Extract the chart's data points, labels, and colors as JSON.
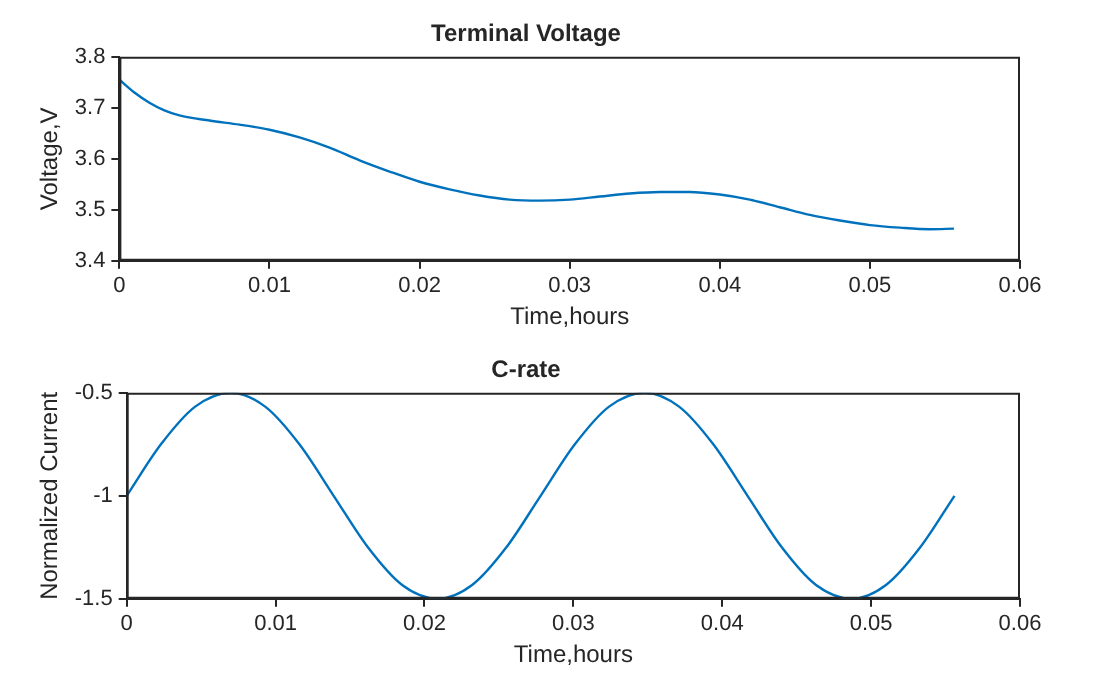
{
  "chart_data": [
    {
      "type": "line",
      "title": "Terminal Voltage",
      "xlabel": "Time,hours",
      "ylabel": "Voltage,V",
      "xlim": [
        0,
        0.06
      ],
      "xticks": [
        0,
        0.01,
        0.02,
        0.03,
        0.04,
        0.05,
        0.06
      ],
      "ylim": [
        3.4,
        3.8
      ],
      "yticks": [
        3.4,
        3.5,
        3.6,
        3.7,
        3.8
      ],
      "grid": false,
      "legend": false,
      "marker": "none",
      "line_style": "solid",
      "x": [
        0,
        0.001,
        0.002,
        0.003,
        0.004,
        0.006,
        0.008,
        0.01,
        0.012,
        0.014,
        0.016,
        0.018,
        0.02,
        0.022,
        0.024,
        0.026,
        0.028,
        0.03,
        0.032,
        0.034,
        0.036,
        0.038,
        0.04,
        0.042,
        0.044,
        0.046,
        0.048,
        0.05,
        0.052,
        0.054,
        0.0556
      ],
      "series": [
        {
          "color": "#0072bd",
          "values": [
            3.755,
            3.73,
            3.71,
            3.695,
            3.685,
            3.675,
            3.667,
            3.657,
            3.642,
            3.622,
            3.597,
            3.575,
            3.555,
            3.54,
            3.528,
            3.52,
            3.518,
            3.52,
            3.526,
            3.532,
            3.535,
            3.535,
            3.53,
            3.52,
            3.505,
            3.49,
            3.479,
            3.47,
            3.465,
            3.462,
            3.463
          ]
        }
      ]
    },
    {
      "type": "line",
      "title": "C-rate",
      "xlabel": "Time,hours",
      "ylabel": "Normalized Current",
      "xlim": [
        0,
        0.06
      ],
      "xticks": [
        0,
        0.01,
        0.02,
        0.03,
        0.04,
        0.05,
        0.06
      ],
      "ylim": [
        -1.5,
        -0.5
      ],
      "yticks": [
        -1.5,
        -1,
        -0.5
      ],
      "grid": false,
      "legend": false,
      "marker": "none",
      "line_style": "solid",
      "x": [
        0,
        0.0023,
        0.0046,
        0.007,
        0.0093,
        0.0116,
        0.0139,
        0.0162,
        0.0185,
        0.0209,
        0.0232,
        0.0255,
        0.0278,
        0.0301,
        0.0324,
        0.0348,
        0.0371,
        0.0394,
        0.0417,
        0.044,
        0.0463,
        0.0487,
        0.051,
        0.0533,
        0.0556
      ],
      "series": [
        {
          "color": "#0072bd",
          "values": [
            -1,
            -0.75,
            -0.567,
            -0.5,
            -0.567,
            -0.75,
            -1,
            -1.25,
            -1.433,
            -1.5,
            -1.433,
            -1.25,
            -1,
            -0.75,
            -0.567,
            -0.5,
            -0.567,
            -0.75,
            -1,
            -1.25,
            -1.433,
            -1.5,
            -1.433,
            -1.25,
            -1
          ]
        }
      ]
    }
  ]
}
